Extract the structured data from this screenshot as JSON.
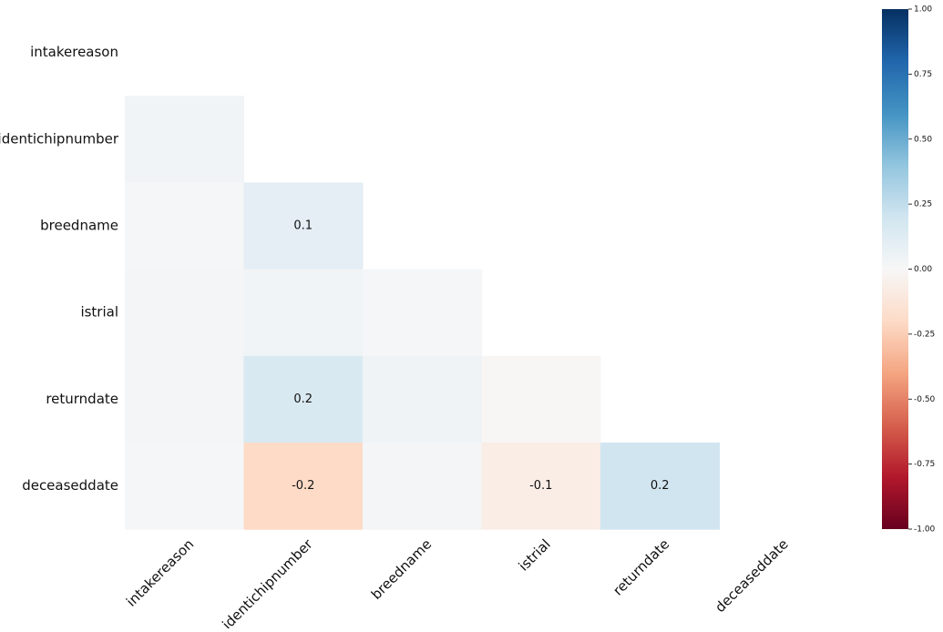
{
  "chart_data": {
    "type": "heatmap",
    "rows": [
      "intakereason",
      "identichipnumber",
      "breedname",
      "istrial",
      "returndate",
      "deceaseddate"
    ],
    "columns": [
      "intakereason",
      "identichipnumber",
      "breedname",
      "istrial",
      "returndate",
      "deceaseddate"
    ],
    "values": [
      [
        null,
        null,
        null,
        null,
        null,
        null
      ],
      [
        0.03,
        null,
        null,
        null,
        null,
        null
      ],
      [
        0.01,
        0.1,
        null,
        null,
        null,
        null
      ],
      [
        0.02,
        0.03,
        0.01,
        null,
        null,
        null
      ],
      [
        0.02,
        0.16,
        0.04,
        -0.01,
        null,
        null
      ],
      [
        0.01,
        -0.2,
        0.02,
        -0.07,
        0.2,
        null
      ]
    ],
    "value_labels": [
      [
        null,
        null,
        null,
        null,
        null,
        null
      ],
      [
        null,
        null,
        null,
        null,
        null,
        null
      ],
      [
        null,
        "0.1",
        null,
        null,
        null,
        null
      ],
      [
        null,
        null,
        null,
        null,
        null,
        null
      ],
      [
        null,
        "0.2",
        null,
        null,
        null,
        null
      ],
      [
        null,
        "-0.2",
        null,
        "-0.1",
        "0.2",
        null
      ]
    ],
    "zlim": [
      -1,
      1
    ],
    "colorscale": [
      "#67001f",
      "#b2182b",
      "#d6604d",
      "#f4a582",
      "#fddbc7",
      "#f7f7f7",
      "#d1e5f0",
      "#92c5de",
      "#4393c3",
      "#2166ac",
      "#053061"
    ],
    "zticks": [
      {
        "value": 1,
        "label": "1.00"
      },
      {
        "value": 0.75,
        "label": "0.75"
      },
      {
        "value": 0.5,
        "label": "0.50"
      },
      {
        "value": 0.25,
        "label": "0.25"
      },
      {
        "value": 0,
        "label": "0.00"
      },
      {
        "value": -0.25,
        "label": "-0.25"
      },
      {
        "value": -0.5,
        "label": "-0.50"
      },
      {
        "value": -0.75,
        "label": "-0.75"
      },
      {
        "value": -1,
        "label": "-1.00"
      }
    ]
  }
}
